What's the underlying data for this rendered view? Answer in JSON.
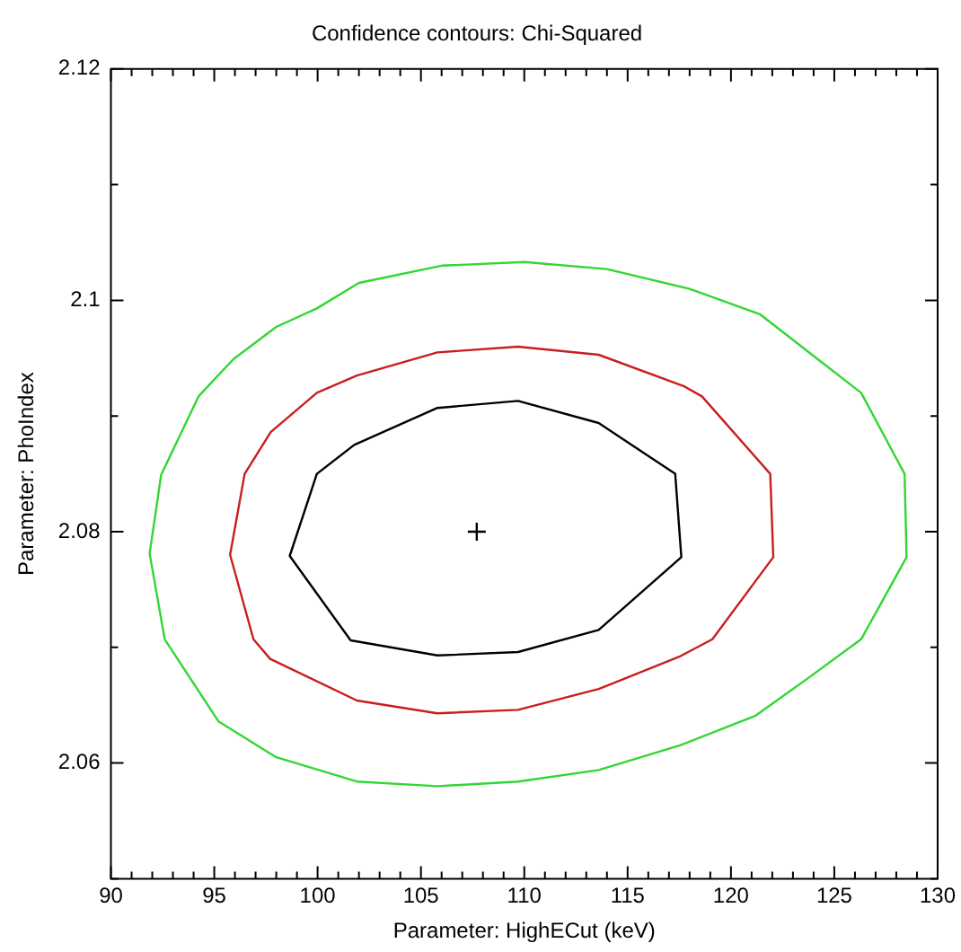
{
  "chart_data": {
    "type": "scatter",
    "title": "Confidence contours: Chi-Squared",
    "xlabel": "Parameter: HighECut (keV)",
    "ylabel": "Parameter: PhoIndex",
    "xlim": [
      90,
      130
    ],
    "ylim": [
      2.05,
      2.12
    ],
    "xticks": [
      90,
      {
        "value": 91,
        "label": null
      },
      {
        "value": 92,
        "label": null
      },
      {
        "value": 93,
        "label": null
      },
      {
        "value": 94,
        "label": null
      },
      95,
      {
        "value": 96,
        "label": null
      },
      {
        "value": 97,
        "label": null
      },
      {
        "value": 98,
        "label": null
      },
      {
        "value": 99,
        "label": null
      },
      100,
      {
        "value": 101,
        "label": null
      },
      {
        "value": 102,
        "label": null
      },
      {
        "value": 103,
        "label": null
      },
      {
        "value": 104,
        "label": null
      },
      105,
      {
        "value": 106,
        "label": null
      },
      {
        "value": 107,
        "label": null
      },
      {
        "value": 108,
        "label": null
      },
      {
        "value": 109,
        "label": null
      },
      110,
      {
        "value": 111,
        "label": null
      },
      {
        "value": 112,
        "label": null
      },
      {
        "value": 113,
        "label": null
      },
      {
        "value": 114,
        "label": null
      },
      115,
      {
        "value": 116,
        "label": null
      },
      {
        "value": 117,
        "label": null
      },
      {
        "value": 118,
        "label": null
      },
      {
        "value": 119,
        "label": null
      },
      120,
      {
        "value": 121,
        "label": null
      },
      {
        "value": 122,
        "label": null
      },
      {
        "value": 123,
        "label": null
      },
      {
        "value": 124,
        "label": null
      },
      125,
      {
        "value": 126,
        "label": null
      },
      {
        "value": 127,
        "label": null
      },
      {
        "value": 128,
        "label": null
      },
      {
        "value": 129,
        "label": null
      },
      130
    ],
    "yticks": [
      {
        "value": 2.05,
        "label": null
      },
      2.06,
      {
        "value": 2.07,
        "label": null
      },
      2.08,
      {
        "value": 2.09,
        "label": null
      },
      2.1,
      {
        "value": 2.11,
        "label": null
      },
      2.12
    ],
    "grid": false,
    "legend": false,
    "series": [
      {
        "type": "scatter",
        "color": "#000000",
        "marker": "cross",
        "x": [
          107.7
        ],
        "values": [
          2.08
        ]
      }
    ]
  }
}
